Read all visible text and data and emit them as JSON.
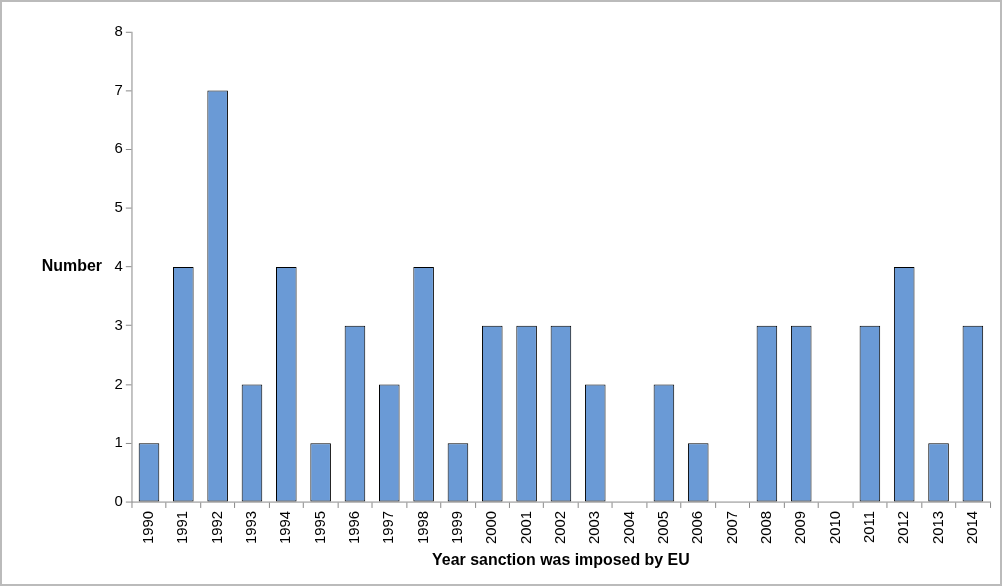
{
  "chart_data": {
    "type": "bar",
    "xlabel": "Year sanction was imposed by EU",
    "ylabel": "Number",
    "categories": [
      "1990",
      "1991",
      "1992",
      "1993",
      "1994",
      "1995",
      "1996",
      "1997",
      "1998",
      "1999",
      "2000",
      "2001",
      "2002",
      "2003",
      "2004",
      "2005",
      "2006",
      "2007",
      "2008",
      "2009",
      "2010",
      "2011",
      "2012",
      "2013",
      "2014"
    ],
    "values": [
      1,
      4,
      7,
      2,
      4,
      1,
      3,
      2,
      4,
      1,
      3,
      3,
      3,
      2,
      0,
      2,
      1,
      0,
      3,
      3,
      0,
      3,
      4,
      1,
      3
    ],
    "color": "#6a9ad6",
    "ylim": [
      0,
      8
    ],
    "yticks": [
      0,
      1,
      2,
      3,
      4,
      5,
      6,
      7,
      8
    ],
    "grid": false,
    "legend": false
  }
}
